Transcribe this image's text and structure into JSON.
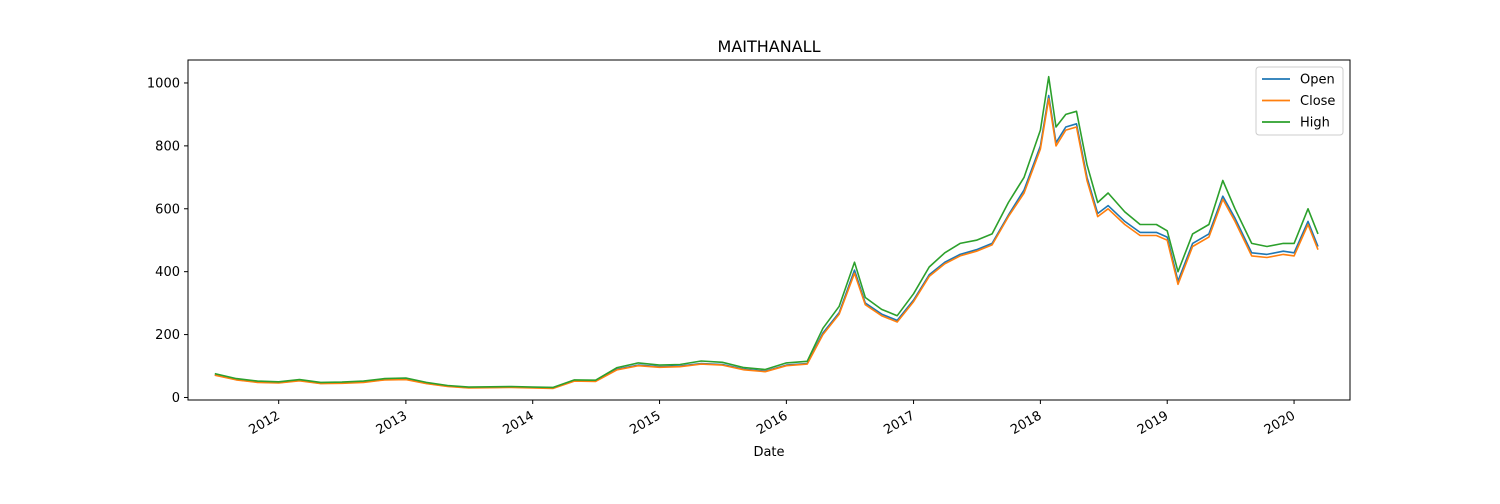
{
  "chart_data": {
    "type": "line",
    "title": "MAITHANALL",
    "xlabel": "Date",
    "ylabel": "",
    "xlim": [
      "2011-04-15",
      "2020-06-10"
    ],
    "ylim": [
      -8,
      1073
    ],
    "x_ticks": [
      "2012",
      "2013",
      "2014",
      "2015",
      "2016",
      "2017",
      "2018",
      "2019",
      "2020"
    ],
    "y_ticks": [
      0,
      200,
      400,
      600,
      800,
      1000
    ],
    "grid": false,
    "legend": {
      "placement": "top-right",
      "entries": [
        "Open",
        "Close",
        "High"
      ]
    },
    "colors": {
      "Open": "#1f77b4",
      "Close": "#ff7f0e",
      "High": "#2ca02c"
    },
    "x": [
      "2011-07-01",
      "2011-09-01",
      "2011-11-01",
      "2012-01-01",
      "2012-03-01",
      "2012-05-01",
      "2012-07-01",
      "2012-09-01",
      "2012-11-01",
      "2013-01-01",
      "2013-03-01",
      "2013-05-01",
      "2013-07-01",
      "2013-09-01",
      "2013-11-01",
      "2014-01-01",
      "2014-03-01",
      "2014-05-01",
      "2014-07-01",
      "2014-09-01",
      "2014-11-01",
      "2015-01-01",
      "2015-03-01",
      "2015-05-01",
      "2015-07-01",
      "2015-09-01",
      "2015-11-01",
      "2016-01-01",
      "2016-03-01",
      "2016-04-15",
      "2016-06-01",
      "2016-07-15",
      "2016-08-15",
      "2016-10-01",
      "2016-11-15",
      "2017-01-01",
      "2017-02-15",
      "2017-04-01",
      "2017-05-15",
      "2017-07-01",
      "2017-08-15",
      "2017-10-01",
      "2017-11-15",
      "2018-01-01",
      "2018-01-25",
      "2018-02-15",
      "2018-03-15",
      "2018-04-15",
      "2018-05-15",
      "2018-06-15",
      "2018-07-15",
      "2018-09-01",
      "2018-10-15",
      "2018-12-01",
      "2019-01-01",
      "2019-02-01",
      "2019-03-15",
      "2019-05-01",
      "2019-06-10",
      "2019-07-15",
      "2019-09-01",
      "2019-10-15",
      "2019-12-01",
      "2020-01-01",
      "2020-02-10",
      "2020-03-10"
    ],
    "series": [
      {
        "name": "Open",
        "values": [
          72,
          57,
          49,
          47,
          54,
          45,
          46,
          49,
          57,
          58,
          45,
          36,
          31,
          32,
          33,
          31,
          30,
          53,
          52,
          90,
          103,
          98,
          100,
          108,
          105,
          90,
          84,
          103,
          108,
          205,
          270,
          405,
          300,
          265,
          245,
          310,
          390,
          430,
          455,
          470,
          490,
          580,
          660,
          800,
          960,
          810,
          860,
          870,
          700,
          585,
          610,
          560,
          525,
          525,
          510,
          370,
          490,
          520,
          640,
          570,
          460,
          455,
          465,
          460,
          560,
          480
        ]
      },
      {
        "name": "Close",
        "values": [
          71,
          56,
          48,
          46,
          53,
          44,
          45,
          48,
          56,
          57,
          44,
          35,
          30,
          31,
          32,
          30,
          29,
          52,
          51,
          88,
          101,
          96,
          98,
          106,
          103,
          88,
          82,
          101,
          106,
          200,
          265,
          395,
          295,
          260,
          240,
          305,
          385,
          425,
          450,
          465,
          485,
          575,
          650,
          790,
          950,
          800,
          850,
          860,
          690,
          575,
          600,
          550,
          515,
          515,
          500,
          360,
          480,
          510,
          630,
          560,
          450,
          445,
          455,
          450,
          550,
          470
        ]
      },
      {
        "name": "High",
        "values": [
          76,
          60,
          52,
          50,
          57,
          48,
          49,
          52,
          60,
          62,
          48,
          38,
          33,
          34,
          35,
          33,
          32,
          56,
          55,
          95,
          110,
          103,
          105,
          116,
          112,
          95,
          89,
          110,
          115,
          220,
          290,
          430,
          318,
          280,
          260,
          330,
          415,
          460,
          490,
          500,
          520,
          620,
          700,
          850,
          1020,
          860,
          900,
          910,
          740,
          620,
          650,
          590,
          550,
          550,
          530,
          400,
          520,
          550,
          690,
          600,
          490,
          480,
          490,
          490,
          600,
          520
        ]
      }
    ]
  }
}
